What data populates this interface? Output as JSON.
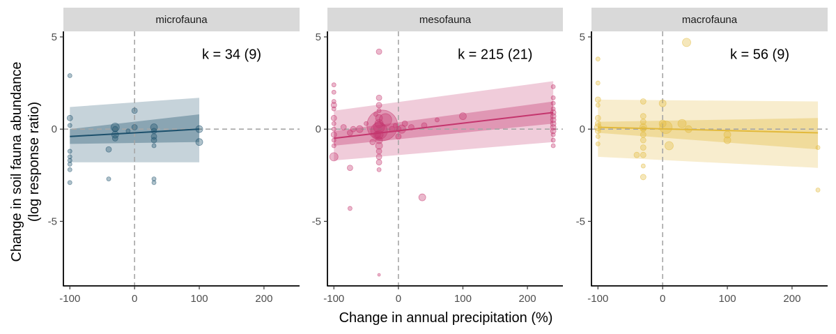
{
  "chart_data": {
    "type": "scatter",
    "xlabel": "Change in annual precipitation (%)",
    "ylabel_line1": "Change in soil fauna abundance",
    "ylabel_line2": "(log response ratio)",
    "xlim": [
      -110,
      255
    ],
    "ylim": [
      -8.5,
      5.3
    ],
    "xticks": [
      -100,
      0,
      100,
      200
    ],
    "yticks": [
      5,
      0,
      -5
    ],
    "xtick_labels": [
      "-100",
      "0",
      "100",
      "200"
    ],
    "ytick_labels": [
      "5",
      "0",
      "-5"
    ],
    "panels": [
      {
        "name": "microfauna",
        "k_label": "k = 34 (9)",
        "color": "#1b4f6b",
        "fit": {
          "x": [
            -100,
            100
          ],
          "y": [
            -0.4,
            0.0
          ]
        },
        "ci": {
          "x": [
            -100,
            100
          ],
          "lower": [
            -0.8,
            -0.7
          ],
          "upper": [
            0.0,
            0.8
          ]
        },
        "pi": {
          "x": [
            -100,
            100
          ],
          "lower": [
            -1.8,
            -1.8
          ],
          "upper": [
            1.2,
            1.7
          ]
        },
        "points": [
          {
            "x": -100,
            "y": 2.9,
            "s": 3
          },
          {
            "x": -100,
            "y": 0.6,
            "s": 4
          },
          {
            "x": -100,
            "y": 0.2,
            "s": 3
          },
          {
            "x": -100,
            "y": -1.2,
            "s": 3
          },
          {
            "x": -100,
            "y": -1.5,
            "s": 3
          },
          {
            "x": -100,
            "y": -1.7,
            "s": 3
          },
          {
            "x": -100,
            "y": -1.9,
            "s": 3
          },
          {
            "x": -100,
            "y": -2.2,
            "s": 3
          },
          {
            "x": -100,
            "y": -2.9,
            "s": 3
          },
          {
            "x": -40,
            "y": -2.7,
            "s": 3
          },
          {
            "x": -40,
            "y": -1.1,
            "s": 4
          },
          {
            "x": -30,
            "y": -0.3,
            "s": 5
          },
          {
            "x": -30,
            "y": -0.5,
            "s": 4
          },
          {
            "x": -30,
            "y": 0.1,
            "s": 6
          },
          {
            "x": -30,
            "y": 0.0,
            "s": 4
          },
          {
            "x": -10,
            "y": -0.1,
            "s": 3
          },
          {
            "x": 0,
            "y": 1.0,
            "s": 4
          },
          {
            "x": 0,
            "y": 0.1,
            "s": 4
          },
          {
            "x": 30,
            "y": 0.1,
            "s": 5
          },
          {
            "x": 30,
            "y": -0.1,
            "s": 4
          },
          {
            "x": 30,
            "y": -0.4,
            "s": 4
          },
          {
            "x": 30,
            "y": -0.6,
            "s": 4
          },
          {
            "x": 30,
            "y": -0.9,
            "s": 3
          },
          {
            "x": 30,
            "y": -2.7,
            "s": 3
          },
          {
            "x": 30,
            "y": -2.9,
            "s": 3
          },
          {
            "x": 100,
            "y": 0.0,
            "s": 5
          },
          {
            "x": 100,
            "y": -0.7,
            "s": 5
          }
        ]
      },
      {
        "name": "mesofauna",
        "k_label": "k = 215 (21)",
        "color": "#c4356d",
        "fit": {
          "x": [
            -100,
            240
          ],
          "y": [
            -0.5,
            0.9
          ]
        },
        "ci": {
          "x": [
            -100,
            240
          ],
          "lower": [
            -0.9,
            0.3
          ],
          "upper": [
            -0.1,
            1.5
          ]
        },
        "pi": {
          "x": [
            -100,
            240
          ],
          "lower": [
            -1.7,
            -0.7
          ],
          "upper": [
            1.0,
            2.6
          ]
        },
        "points": [
          {
            "x": -100,
            "y": 2.4,
            "s": 3
          },
          {
            "x": -100,
            "y": 2.0,
            "s": 3
          },
          {
            "x": -100,
            "y": 1.5,
            "s": 3
          },
          {
            "x": -100,
            "y": 1.3,
            "s": 4
          },
          {
            "x": -100,
            "y": 1.1,
            "s": 3
          },
          {
            "x": -100,
            "y": 0.6,
            "s": 4
          },
          {
            "x": -100,
            "y": 0.3,
            "s": 3
          },
          {
            "x": -100,
            "y": 0.0,
            "s": 3
          },
          {
            "x": -100,
            "y": -0.3,
            "s": 4
          },
          {
            "x": -100,
            "y": -0.6,
            "s": 3
          },
          {
            "x": -100,
            "y": -0.9,
            "s": 3
          },
          {
            "x": -100,
            "y": -1.5,
            "s": 6
          },
          {
            "x": -85,
            "y": 0.1,
            "s": 4
          },
          {
            "x": -75,
            "y": -2.1,
            "s": 4
          },
          {
            "x": -75,
            "y": -4.3,
            "s": 3
          },
          {
            "x": -75,
            "y": -0.2,
            "s": 4
          },
          {
            "x": -70,
            "y": 0.0,
            "s": 4
          },
          {
            "x": -60,
            "y": 0.0,
            "s": 5
          },
          {
            "x": -50,
            "y": 0.3,
            "s": 3
          },
          {
            "x": -40,
            "y": -0.7,
            "s": 4
          },
          {
            "x": -35,
            "y": 0.8,
            "s": 3
          },
          {
            "x": -33,
            "y": -0.3,
            "s": 5
          },
          {
            "x": -30,
            "y": 1.7,
            "s": 4
          },
          {
            "x": -30,
            "y": 1.3,
            "s": 4
          },
          {
            "x": -30,
            "y": 1.0,
            "s": 3
          },
          {
            "x": -30,
            "y": 0.6,
            "s": 5
          },
          {
            "x": -30,
            "y": 0.3,
            "s": 6
          },
          {
            "x": -30,
            "y": 0.1,
            "s": 8
          },
          {
            "x": -30,
            "y": -0.1,
            "s": 12
          },
          {
            "x": -30,
            "y": -0.3,
            "s": 6
          },
          {
            "x": -30,
            "y": -0.6,
            "s": 5
          },
          {
            "x": -30,
            "y": -0.9,
            "s": 5
          },
          {
            "x": -30,
            "y": -1.2,
            "s": 4
          },
          {
            "x": -30,
            "y": -1.5,
            "s": 4
          },
          {
            "x": -30,
            "y": -1.8,
            "s": 4
          },
          {
            "x": -30,
            "y": -2.2,
            "s": 3
          },
          {
            "x": -30,
            "y": -7.9,
            "s": 2
          },
          {
            "x": -30,
            "y": 4.2,
            "s": 4
          },
          {
            "x": -25,
            "y": 0.2,
            "s": 22
          },
          {
            "x": -20,
            "y": 0.5,
            "s": 9
          },
          {
            "x": -10,
            "y": 0.0,
            "s": 4
          },
          {
            "x": -5,
            "y": 0.2,
            "s": 3
          },
          {
            "x": 0,
            "y": -0.4,
            "s": 4
          },
          {
            "x": 0,
            "y": 0.0,
            "s": 4
          },
          {
            "x": 5,
            "y": 0.0,
            "s": 6
          },
          {
            "x": 10,
            "y": 0.3,
            "s": 4
          },
          {
            "x": 20,
            "y": 0.1,
            "s": 4
          },
          {
            "x": 37,
            "y": -3.7,
            "s": 5
          },
          {
            "x": 40,
            "y": 0.2,
            "s": 4
          },
          {
            "x": 60,
            "y": 0.5,
            "s": 3
          },
          {
            "x": 100,
            "y": 0.7,
            "s": 5
          },
          {
            "x": 240,
            "y": 2.3,
            "s": 3
          },
          {
            "x": 240,
            "y": 1.7,
            "s": 3
          },
          {
            "x": 240,
            "y": 1.4,
            "s": 3
          },
          {
            "x": 240,
            "y": 1.1,
            "s": 3
          },
          {
            "x": 240,
            "y": 0.9,
            "s": 4
          },
          {
            "x": 240,
            "y": 0.7,
            "s": 4
          },
          {
            "x": 240,
            "y": 0.5,
            "s": 4
          },
          {
            "x": 240,
            "y": 0.3,
            "s": 4
          },
          {
            "x": 240,
            "y": 0.1,
            "s": 4
          },
          {
            "x": 240,
            "y": -0.1,
            "s": 4
          },
          {
            "x": 240,
            "y": -0.3,
            "s": 3
          },
          {
            "x": 240,
            "y": -0.6,
            "s": 3
          },
          {
            "x": 240,
            "y": -0.9,
            "s": 3
          }
        ]
      },
      {
        "name": "macrofauna",
        "k_label": "k = 56 (9)",
        "color": "#e2b93b",
        "fit": {
          "x": [
            -100,
            240
          ],
          "y": [
            0.1,
            -0.2
          ]
        },
        "ci": {
          "x": [
            -100,
            240
          ],
          "lower": [
            -0.2,
            -1.1
          ],
          "upper": [
            0.4,
            0.6
          ]
        },
        "pi": {
          "x": [
            -100,
            240
          ],
          "lower": [
            -1.5,
            -2.1
          ],
          "upper": [
            1.6,
            1.5
          ]
        },
        "points": [
          {
            "x": -100,
            "y": 3.8,
            "s": 3
          },
          {
            "x": -100,
            "y": 2.5,
            "s": 3
          },
          {
            "x": -100,
            "y": 1.6,
            "s": 4
          },
          {
            "x": -100,
            "y": 1.3,
            "s": 3
          },
          {
            "x": -100,
            "y": 0.6,
            "s": 4
          },
          {
            "x": -100,
            "y": 0.3,
            "s": 4
          },
          {
            "x": -100,
            "y": 0.1,
            "s": 5
          },
          {
            "x": -100,
            "y": -0.1,
            "s": 4
          },
          {
            "x": -100,
            "y": -0.4,
            "s": 3
          },
          {
            "x": -100,
            "y": -0.8,
            "s": 3
          },
          {
            "x": -40,
            "y": -1.4,
            "s": 4
          },
          {
            "x": -30,
            "y": 1.5,
            "s": 4
          },
          {
            "x": -30,
            "y": 0.7,
            "s": 4
          },
          {
            "x": -30,
            "y": 0.4,
            "s": 4
          },
          {
            "x": -30,
            "y": 0.1,
            "s": 5
          },
          {
            "x": -30,
            "y": 0.0,
            "s": 4
          },
          {
            "x": -30,
            "y": -0.3,
            "s": 4
          },
          {
            "x": -30,
            "y": -0.6,
            "s": 4
          },
          {
            "x": -30,
            "y": -1.0,
            "s": 4
          },
          {
            "x": -30,
            "y": -1.4,
            "s": 4
          },
          {
            "x": -30,
            "y": -2.0,
            "s": 3
          },
          {
            "x": -30,
            "y": -2.6,
            "s": 4
          },
          {
            "x": 0,
            "y": 1.4,
            "s": 5
          },
          {
            "x": 0,
            "y": 0.3,
            "s": 5
          },
          {
            "x": 5,
            "y": 0.1,
            "s": 9
          },
          {
            "x": 10,
            "y": -0.9,
            "s": 6
          },
          {
            "x": 30,
            "y": 0.3,
            "s": 6
          },
          {
            "x": 37,
            "y": 4.7,
            "s": 6
          },
          {
            "x": 40,
            "y": 0.0,
            "s": 5
          },
          {
            "x": 100,
            "y": -0.3,
            "s": 5
          },
          {
            "x": 100,
            "y": -0.6,
            "s": 5
          },
          {
            "x": 240,
            "y": -1.0,
            "s": 3
          },
          {
            "x": 240,
            "y": -3.3,
            "s": 3
          }
        ]
      }
    ]
  }
}
